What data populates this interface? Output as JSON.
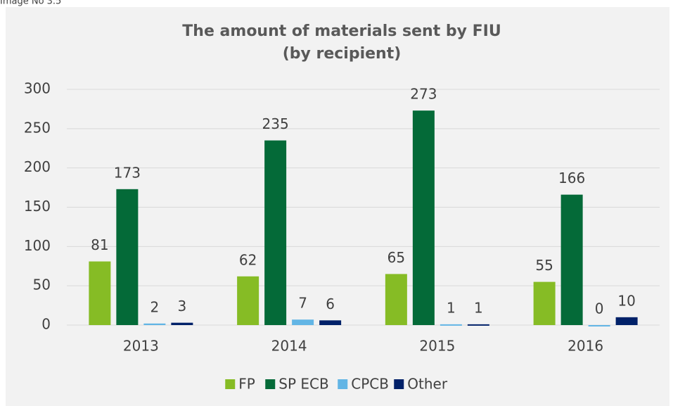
{
  "caption": "Image No 3.5",
  "chart_data": {
    "type": "bar",
    "title_lines": [
      "The amount of materials sent by FIU",
      "(by recipient)"
    ],
    "categories": [
      "2013",
      "2014",
      "2015",
      "2016"
    ],
    "series": [
      {
        "name": "FP",
        "color": "#86bc25",
        "values": [
          81,
          62,
          65,
          55
        ]
      },
      {
        "name": "SP ECB",
        "color": "#046a38",
        "values": [
          173,
          235,
          273,
          166
        ]
      },
      {
        "name": "CPCB",
        "color": "#62b5e5",
        "values": [
          2,
          7,
          1,
          0
        ]
      },
      {
        "name": "Other",
        "color": "#012169",
        "values": [
          3,
          6,
          1,
          10
        ]
      }
    ],
    "ylim": [
      0,
      300
    ],
    "yticks": [
      0,
      50,
      100,
      150,
      200,
      250,
      300
    ],
    "grid": true,
    "legend": "bottom",
    "data_labels": true
  }
}
